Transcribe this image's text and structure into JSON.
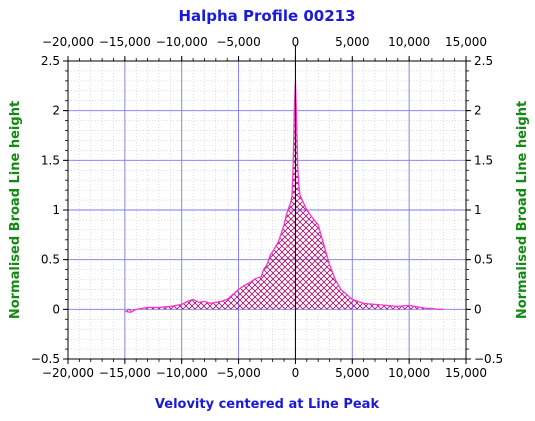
{
  "chart_data": {
    "type": "area",
    "title": "Halpha Profile 00213",
    "xlabel": "Velovity centered at Line Peak",
    "ylabel": "Normalised Broad Line height",
    "xlim": [
      -20000,
      15000
    ],
    "ylim": [
      -0.5,
      2.5
    ],
    "x_ticks": [
      "−20,000",
      "−15,000",
      "−10,000",
      "−5,000",
      "0",
      "5,000",
      "10,000",
      "15,000"
    ],
    "y_ticks": [
      "−0.5",
      "0",
      "0.5",
      "1",
      "1.5",
      "2",
      "2.5"
    ],
    "grid": true,
    "fill": "crosshatch",
    "colors": {
      "line": "#ff33cc",
      "hatch": "#a0106a",
      "major_grid": "#7a7af5",
      "minor_grid": "#c8c8c8",
      "zero_line": "#000000",
      "title": "#1a1ad8",
      "ylabel": "#138a13"
    },
    "series": [
      {
        "x": [
          -15000,
          -14500,
          -14000,
          -13500,
          -13000,
          -12000,
          -11000,
          -10000,
          -9500,
          -9000,
          -8500,
          -8000,
          -7500,
          -7000,
          -6500,
          -6000,
          -5500,
          -5000,
          -4500,
          -4000,
          -3500,
          -3000,
          -2800,
          -2500,
          -2200,
          -2000,
          -1800,
          -1500,
          -1200,
          -1000,
          -800,
          -600,
          -400,
          -300,
          -200,
          -100,
          0,
          100,
          200,
          300,
          400,
          600,
          800,
          1000,
          1200,
          1500,
          2000,
          2500,
          3000,
          3500,
          4000,
          4500,
          5000,
          5500,
          6000,
          7000,
          8000,
          9000,
          10000,
          10500,
          11000,
          11500,
          12000,
          12500,
          13000
        ],
        "y": [
          -0.02,
          -0.03,
          0.0,
          0.01,
          0.02,
          0.02,
          0.03,
          0.05,
          0.08,
          0.1,
          0.07,
          0.08,
          0.06,
          0.07,
          0.08,
          0.1,
          0.15,
          0.2,
          0.24,
          0.27,
          0.31,
          0.33,
          0.4,
          0.45,
          0.55,
          0.58,
          0.62,
          0.68,
          0.78,
          0.85,
          0.95,
          1.02,
          1.08,
          1.15,
          1.45,
          2.0,
          2.3,
          1.9,
          1.45,
          1.25,
          1.15,
          1.1,
          1.05,
          1.0,
          0.97,
          0.92,
          0.85,
          0.65,
          0.45,
          0.3,
          0.2,
          0.15,
          0.1,
          0.08,
          0.06,
          0.05,
          0.04,
          0.03,
          0.04,
          0.03,
          0.02,
          0.01,
          0.01,
          0.0,
          0.0
        ]
      }
    ]
  }
}
